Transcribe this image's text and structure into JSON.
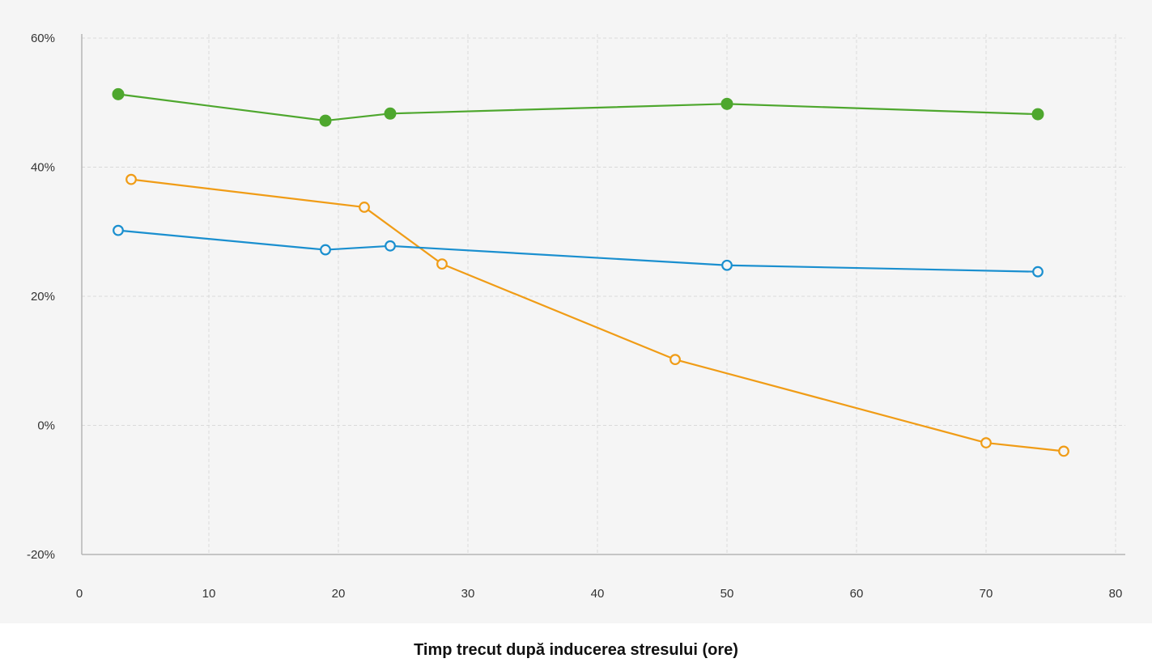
{
  "chart_data": {
    "type": "line",
    "xlabel": "Timp trecut după inducerea stresului (ore)",
    "ylabel": "",
    "xlim": [
      0,
      80
    ],
    "ylim": [
      -20,
      60
    ],
    "x_ticks": [
      "0",
      "10",
      "20",
      "30",
      "40",
      "50",
      "60",
      "70",
      "80"
    ],
    "x_tick_values": [
      0,
      10,
      20,
      30,
      40,
      50,
      60,
      70,
      80
    ],
    "y_ticks": [
      "-20%",
      "0%",
      "20%",
      "40%",
      "60%"
    ],
    "y_tick_values": [
      -20,
      0,
      20,
      40,
      60
    ],
    "grid": true,
    "series": [
      {
        "color": "#4ea72e",
        "marker": "filled-circle",
        "x": [
          3,
          19,
          24,
          50,
          74
        ],
        "y": [
          51.3,
          47.2,
          48.3,
          49.8,
          48.2
        ]
      },
      {
        "color": "#f09c16",
        "marker": "hollow-circle",
        "x": [
          4,
          22,
          28,
          46,
          70,
          76
        ],
        "y": [
          38.1,
          33.8,
          25.0,
          10.2,
          -2.7,
          -4.0
        ]
      },
      {
        "color": "#1a8fcf",
        "marker": "hollow-circle",
        "x": [
          3,
          19,
          24,
          50,
          74
        ],
        "y": [
          30.2,
          27.2,
          27.8,
          24.8,
          23.8
        ]
      }
    ]
  }
}
